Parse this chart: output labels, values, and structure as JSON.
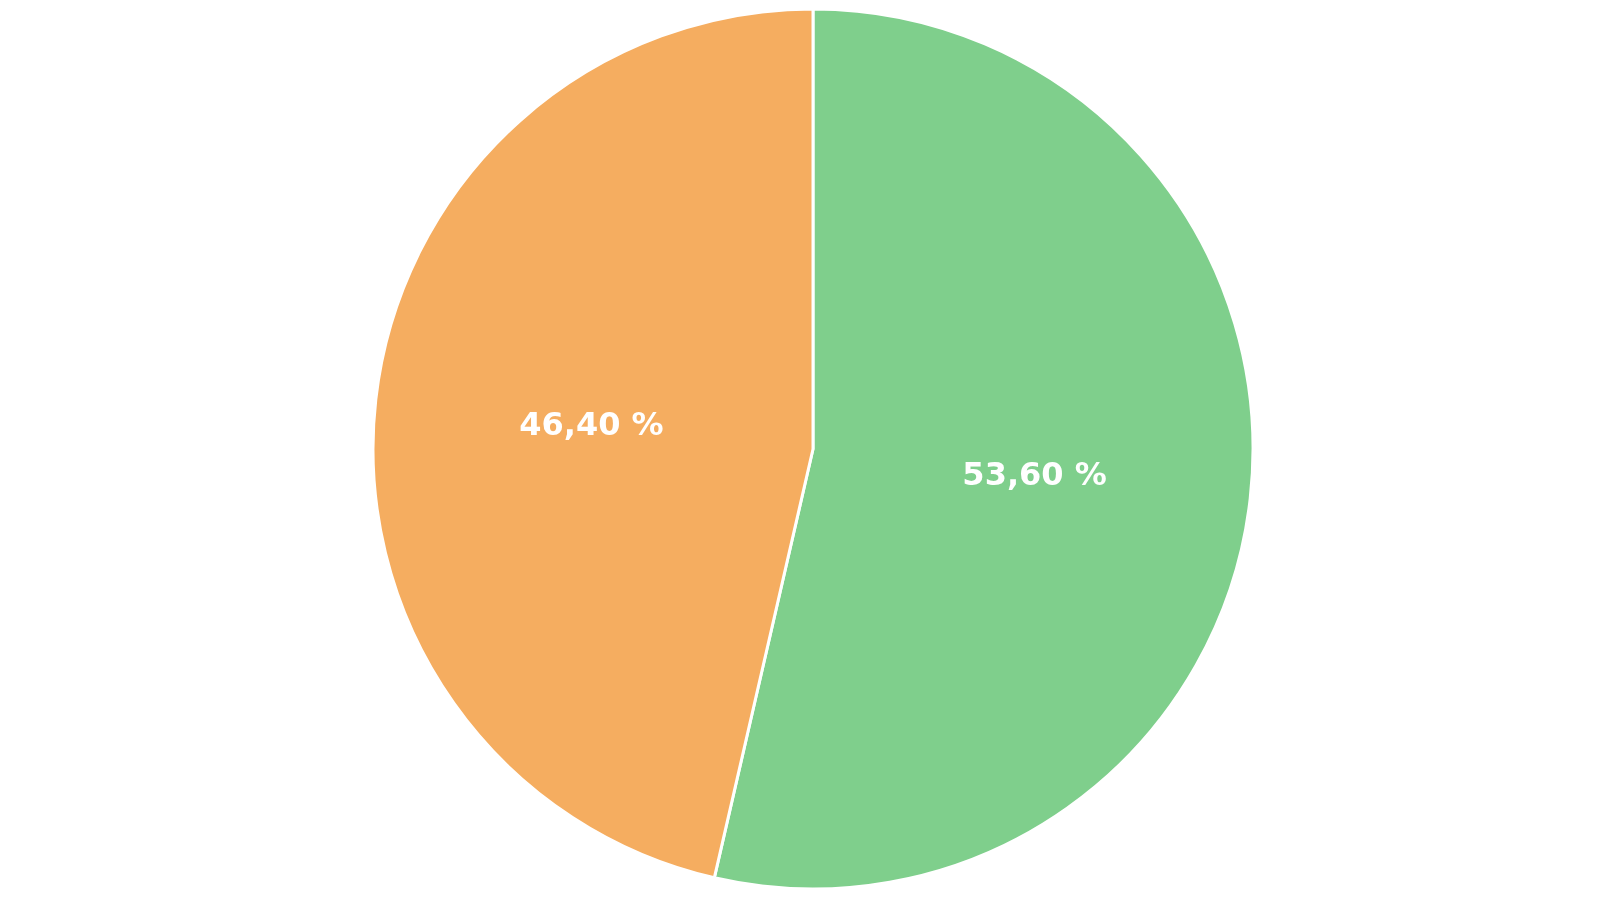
{
  "chart_data": {
    "type": "pie",
    "categories": [
      null,
      null
    ],
    "values": [
      53.6,
      46.4
    ],
    "colors": [
      "#7fcf8c",
      "#f5ad60"
    ],
    "value_labels": [
      "53,60 %",
      "46,40 %"
    ]
  }
}
